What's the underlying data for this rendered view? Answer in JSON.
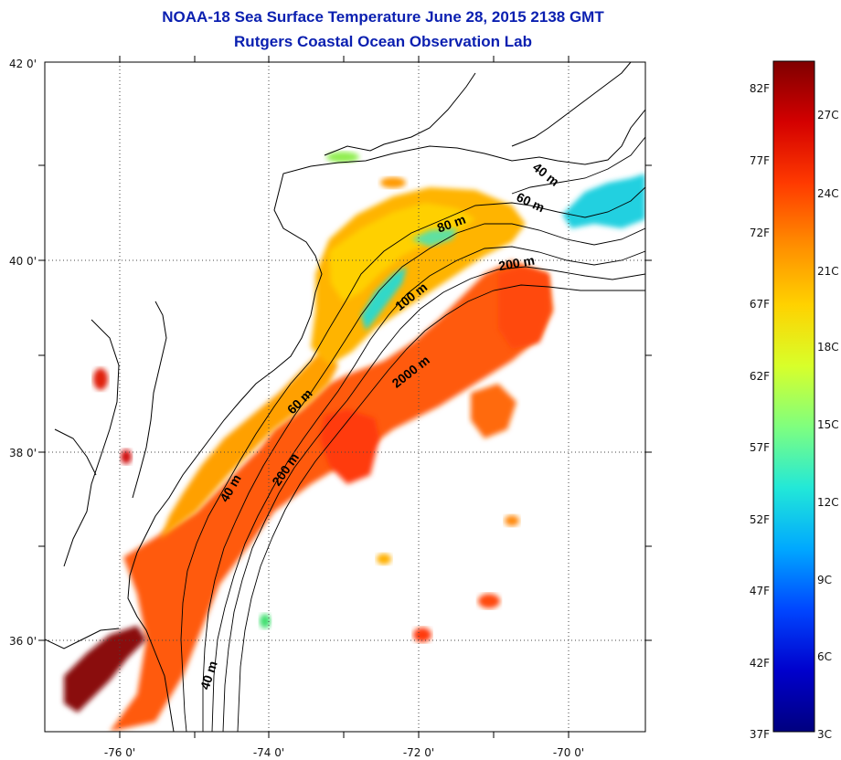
{
  "title_line1": "NOAA-18 Sea Surface Temperature June 28, 2015 2138 GMT",
  "title_line2": "Rutgers Coastal Ocean Observation Lab",
  "map": {
    "lat_ticks": [
      "42 0'",
      "40 0'",
      "38 0'",
      "36 0'"
    ],
    "lon_ticks": [
      "-76 0'",
      "-74 0'",
      "-72 0'",
      "-70 0'"
    ],
    "contour_labels": [
      "40 m",
      "60 m",
      "80 m",
      "200 m",
      "100 m",
      "2000 m",
      "60 m",
      "200 m",
      "40 m",
      "40 m"
    ]
  },
  "colorbar": {
    "fahrenheit_labels": [
      "82F",
      "77F",
      "72F",
      "67F",
      "62F",
      "57F",
      "52F",
      "47F",
      "42F",
      "37F"
    ],
    "celsius_labels": [
      "27C",
      "24C",
      "21C",
      "18C",
      "15C",
      "12C",
      "9C",
      "6C",
      "3C"
    ],
    "colors": [
      "#7f0000",
      "#d40000",
      "#ff3a00",
      "#ff8c00",
      "#ffd200",
      "#d8ff2a",
      "#7fff7f",
      "#22e8d8",
      "#00a8ff",
      "#0046ff",
      "#0000cc",
      "#00007f"
    ]
  },
  "chart_data": {
    "type": "heatmap",
    "title": "NOAA-18 Sea Surface Temperature June 28, 2015 2138 GMT",
    "subtitle": "Rutgers Coastal Ocean Observation Lab",
    "xlabel": "",
    "ylabel": "",
    "x_ticks": [
      -76,
      -74,
      -72,
      -70
    ],
    "y_ticks": [
      42,
      40,
      38,
      36
    ],
    "colorbar_range_F": [
      37,
      84
    ],
    "colorbar_range_C": [
      3,
      29
    ],
    "isobaths_m": [
      40,
      60,
      80,
      100,
      200,
      2000
    ]
  }
}
